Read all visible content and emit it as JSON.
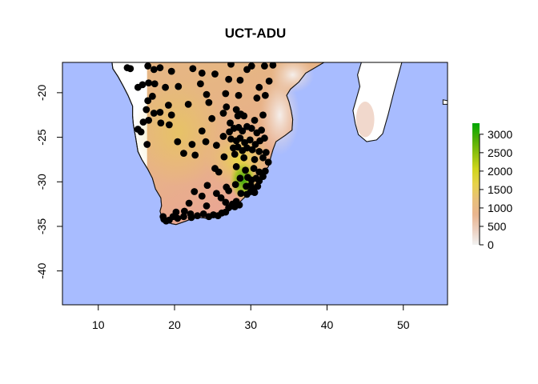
{
  "title": "UCT-ADU",
  "map": {
    "xlim": [
      5.3,
      55.8
    ],
    "ylim": [
      -43.8,
      -16.6
    ],
    "ocean_color": "#a8bcff",
    "land_outside_raster_color": "#ffffff",
    "raster_west_edge_lon": 16.4,
    "point_color": "#000000",
    "x_ticks": [
      10,
      20,
      30,
      40,
      50
    ],
    "y_ticks": [
      -20,
      -25,
      -30,
      -35,
      -40
    ],
    "x_tick_labels": [
      "10",
      "20",
      "30",
      "40",
      "50"
    ],
    "y_tick_labels": [
      "-20",
      "-25",
      "-30",
      "-35",
      "-40"
    ]
  },
  "legend": {
    "range": [
      0,
      3300
    ],
    "ticks": [
      0,
      500,
      1000,
      1500,
      2000,
      2500,
      3000
    ],
    "tick_labels": [
      "0",
      "500",
      "1000",
      "1500",
      "2000",
      "2500",
      "3000"
    ],
    "colors": [
      "#f2f2f2",
      "#eccfbf",
      "#e9b58f",
      "#e8c07a",
      "#e6d24a",
      "#cfd51c",
      "#8fc10e",
      "#4cad06",
      "#00a600"
    ]
  },
  "chart_data": {
    "type": "scatter",
    "title": "UCT-ADU",
    "xlabel": "",
    "ylabel": "",
    "xlim": [
      5.3,
      55.8
    ],
    "ylim": [
      -43.8,
      -16.6
    ],
    "series": [
      {
        "values": [
          [
            13.8,
            -17.2
          ],
          [
            14.2,
            -17.3
          ],
          [
            16.5,
            -17.0
          ],
          [
            17.3,
            -17.4
          ],
          [
            18.1,
            -17.2
          ],
          [
            19.6,
            -17.6
          ],
          [
            22.4,
            -17.3
          ],
          [
            23.6,
            -17.8
          ],
          [
            25.3,
            -17.9
          ],
          [
            27.4,
            -16.8
          ],
          [
            29.5,
            -17.4
          ],
          [
            30.1,
            -17.0
          ],
          [
            31.8,
            -17.0
          ],
          [
            32.9,
            -16.9
          ],
          [
            27.1,
            -18.5
          ],
          [
            28.6,
            -18.6
          ],
          [
            31.1,
            -19.4
          ],
          [
            32.4,
            -18.7
          ],
          [
            15.2,
            -19.4
          ],
          [
            15.8,
            -19.1
          ],
          [
            16.6,
            -18.9
          ],
          [
            17.4,
            -19.0
          ],
          [
            18.8,
            -19.4
          ],
          [
            20.5,
            -19.3
          ],
          [
            23.4,
            -19.0
          ],
          [
            24.2,
            -20.2
          ],
          [
            26.7,
            -20.1
          ],
          [
            28.4,
            -20.3
          ],
          [
            30.8,
            -20.6
          ],
          [
            31.9,
            -20.3
          ],
          [
            16.5,
            -20.9
          ],
          [
            17.1,
            -20.4
          ],
          [
            19.2,
            -21.4
          ],
          [
            21.8,
            -21.3
          ],
          [
            24.5,
            -21.1
          ],
          [
            26.8,
            -21.6
          ],
          [
            28.1,
            -21.9
          ],
          [
            16.3,
            -21.9
          ],
          [
            17.3,
            -22.3
          ],
          [
            18.1,
            -22.2
          ],
          [
            19.6,
            -22.5
          ],
          [
            15.9,
            -23.3
          ],
          [
            16.6,
            -23.1
          ],
          [
            18.2,
            -23.4
          ],
          [
            19.3,
            -23.6
          ],
          [
            24.9,
            -22.9
          ],
          [
            26.4,
            -22.3
          ],
          [
            27.3,
            -23.4
          ],
          [
            28.3,
            -22.6
          ],
          [
            28.7,
            -22.4
          ],
          [
            29.1,
            -22.6
          ],
          [
            30.5,
            -23.1
          ],
          [
            31.6,
            -22.5
          ],
          [
            15.2,
            -24.1
          ],
          [
            15.6,
            -24.4
          ],
          [
            23.6,
            -24.3
          ],
          [
            26.4,
            -24.9
          ],
          [
            27.2,
            -24.4
          ],
          [
            27.8,
            -24.0
          ],
          [
            28.4,
            -23.9
          ],
          [
            28.9,
            -24.3
          ],
          [
            29.5,
            -23.8
          ],
          [
            30.1,
            -24.0
          ],
          [
            30.8,
            -24.5
          ],
          [
            31.4,
            -24.2
          ],
          [
            27.4,
            -25.2
          ],
          [
            28.1,
            -25.4
          ],
          [
            28.6,
            -25.1
          ],
          [
            29.2,
            -25.6
          ],
          [
            29.9,
            -25.3
          ],
          [
            30.6,
            -25.8
          ],
          [
            31.2,
            -25.4
          ],
          [
            31.8,
            -25.1
          ],
          [
            16.4,
            -25.8
          ],
          [
            20.4,
            -25.5
          ],
          [
            22.3,
            -25.8
          ],
          [
            24.1,
            -25.5
          ],
          [
            25.5,
            -25.9
          ],
          [
            27.7,
            -26.2
          ],
          [
            28.3,
            -26.1
          ],
          [
            28.9,
            -26.5
          ],
          [
            29.5,
            -26.2
          ],
          [
            30.2,
            -26.4
          ],
          [
            31.1,
            -26.6
          ],
          [
            32.0,
            -26.7
          ],
          [
            21.2,
            -26.8
          ],
          [
            22.7,
            -27.0
          ],
          [
            26.5,
            -27.2
          ],
          [
            27.9,
            -26.9
          ],
          [
            29.1,
            -27.3
          ],
          [
            30.5,
            -27.5
          ],
          [
            31.6,
            -27.3
          ],
          [
            32.3,
            -27.8
          ],
          [
            25.3,
            -28.5
          ],
          [
            25.8,
            -28.9
          ],
          [
            28.1,
            -28.3
          ],
          [
            29.3,
            -28.7
          ],
          [
            30.4,
            -28.5
          ],
          [
            31.1,
            -28.9
          ],
          [
            31.9,
            -28.8
          ],
          [
            28.6,
            -29.6
          ],
          [
            29.6,
            -29.5
          ],
          [
            30.1,
            -29.8
          ],
          [
            30.7,
            -29.6
          ],
          [
            31.1,
            -29.9
          ],
          [
            31.6,
            -29.4
          ],
          [
            28.0,
            -30.3
          ],
          [
            29.4,
            -30.5
          ],
          [
            30.0,
            -30.4
          ],
          [
            30.4,
            -30.8
          ],
          [
            30.9,
            -30.5
          ],
          [
            24.3,
            -30.4
          ],
          [
            26.8,
            -30.6
          ],
          [
            22.6,
            -31.1
          ],
          [
            25.5,
            -31.3
          ],
          [
            26.1,
            -31.8
          ],
          [
            27.1,
            -31.0
          ],
          [
            28.7,
            -31.3
          ],
          [
            29.5,
            -31.4
          ],
          [
            30.0,
            -31.1
          ],
          [
            30.5,
            -31.2
          ],
          [
            23.6,
            -31.6
          ],
          [
            26.7,
            -32.3
          ],
          [
            27.6,
            -32.5
          ],
          [
            28.1,
            -32.2
          ],
          [
            28.5,
            -32.6
          ],
          [
            21.9,
            -32.4
          ],
          [
            24.2,
            -32.7
          ],
          [
            27.1,
            -32.9
          ],
          [
            27.9,
            -32.8
          ],
          [
            20.2,
            -33.4
          ],
          [
            21.3,
            -33.3
          ],
          [
            22.1,
            -33.6
          ],
          [
            23.0,
            -33.8
          ],
          [
            23.8,
            -33.6
          ],
          [
            24.5,
            -33.9
          ],
          [
            25.1,
            -33.7
          ],
          [
            25.7,
            -33.8
          ],
          [
            26.2,
            -33.5
          ],
          [
            26.7,
            -33.4
          ],
          [
            19.8,
            -33.9
          ],
          [
            20.4,
            -34.1
          ],
          [
            21.2,
            -33.9
          ],
          [
            22.2,
            -34.0
          ],
          [
            18.5,
            -33.9
          ],
          [
            18.9,
            -34.4
          ],
          [
            19.3,
            -34.3
          ],
          [
            18.6,
            -34.2
          ]
        ]
      }
    ]
  }
}
